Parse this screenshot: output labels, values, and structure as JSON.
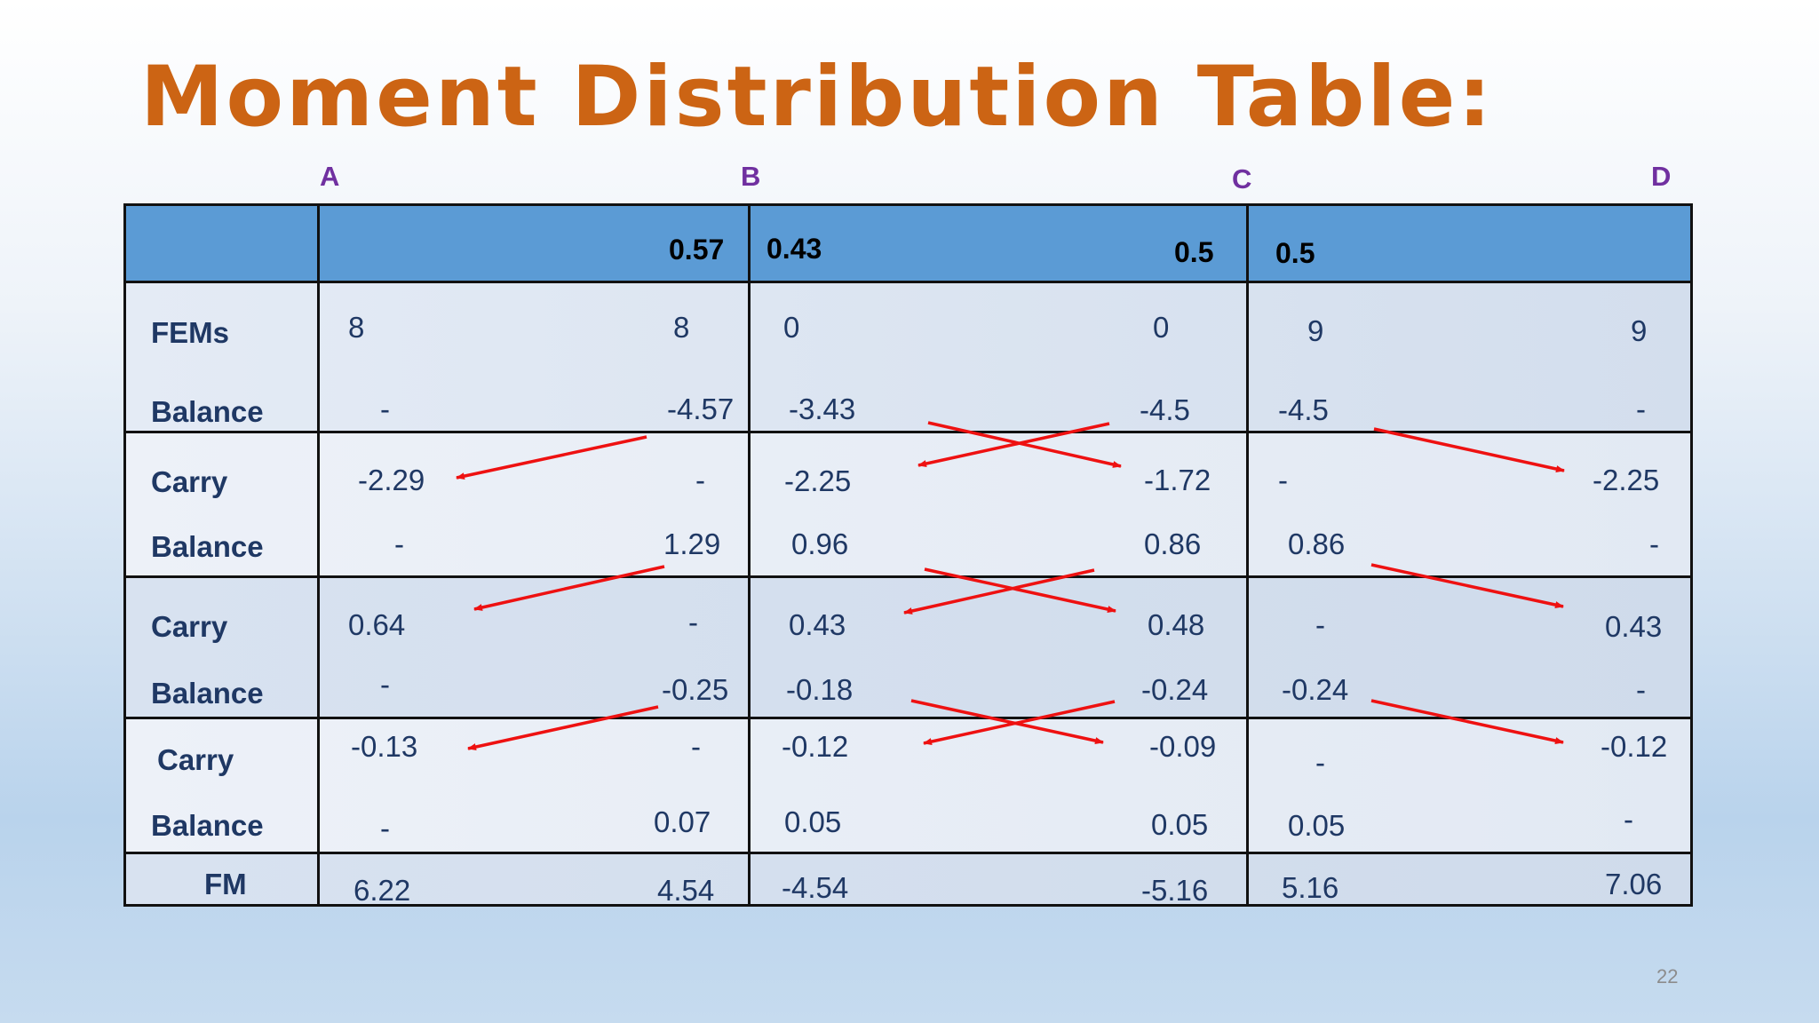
{
  "title": "Moment Distribution Table:",
  "joints": [
    "A",
    "B",
    "C",
    "D"
  ],
  "distribution_factors": [
    "0.57",
    "0.43",
    "0.5",
    "0.5"
  ],
  "rows": [
    {
      "label": "FEMs",
      "values": [
        "8",
        "8",
        "0",
        "0",
        "9",
        "9"
      ]
    },
    {
      "label": "Balance",
      "values": [
        "-",
        "-4.57",
        "-3.43",
        "-4.5",
        "-4.5",
        "-"
      ]
    },
    {
      "label": "Carry",
      "values": [
        "-2.29",
        "-",
        "-2.25",
        "-1.72",
        "-",
        "-2.25"
      ]
    },
    {
      "label": "Balance",
      "values": [
        "-",
        "1.29",
        "0.96",
        "0.86",
        "0.86",
        "-"
      ]
    },
    {
      "label": "Carry",
      "values": [
        "0.64",
        "-",
        "0.43",
        "0.48",
        "-",
        "0.43"
      ]
    },
    {
      "label": "Balance",
      "values": [
        "-",
        "-0.25",
        "-0.18",
        "-0.24",
        "-0.24",
        "-"
      ]
    },
    {
      "label": "Carry",
      "values": [
        "-0.13",
        "-",
        "-0.12",
        "-0.09",
        "-",
        "-0.12"
      ]
    },
    {
      "label": "Balance",
      "values": [
        "-",
        "0.07",
        "0.05",
        "0.05",
        "0.05",
        "-"
      ]
    },
    {
      "label": "FM",
      "values": [
        "6.22",
        "4.54",
        "-4.54",
        "-5.16",
        "5.16",
        "7.06"
      ]
    }
  ],
  "page_number": "22",
  "colors": {
    "title": "#cc6414",
    "joint_labels": "#7030a0",
    "header_fill": "#5b9bd5",
    "band_light": "#e8eef6",
    "band_dark": "#d0dcec",
    "cell_text": "#1f3864",
    "arrow": "#ee1111"
  }
}
